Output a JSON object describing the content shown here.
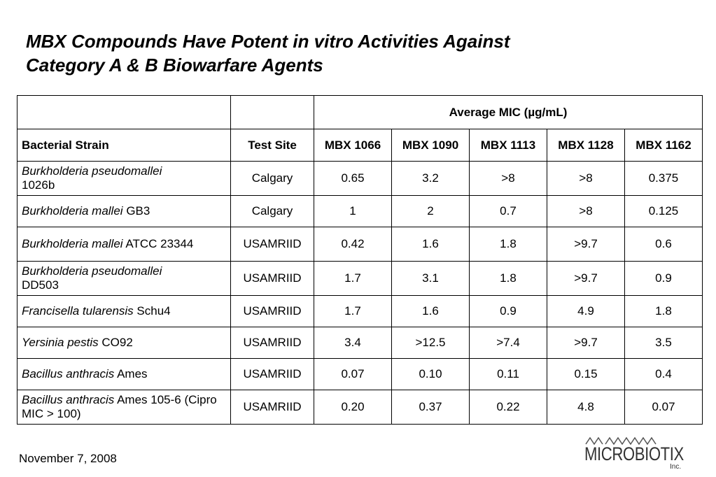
{
  "title": {
    "line1": "MBX Compounds Have Potent in vitro Activities Against",
    "line2": "Category A & B Biowarfare Agents"
  },
  "table": {
    "group_header": "Average MIC (µg/mL)",
    "headers": [
      "Bacterial Strain",
      "Test Site",
      "MBX 1066",
      "MBX 1090",
      "MBX 1113",
      "MBX 1128",
      "MBX 1162"
    ],
    "rows": [
      {
        "species": "Burkholderia pseudomallei",
        "strain": "1026b",
        "site": "Calgary",
        "values": [
          "0.65",
          "3.2",
          ">8",
          ">8",
          "0.375"
        ]
      },
      {
        "species": "Burkholderia mallei",
        "strain": "GB3",
        "site": "Calgary",
        "values": [
          "1",
          "2",
          "0.7",
          ">8",
          "0.125"
        ]
      },
      {
        "species": "Burkholderia mallei",
        "strain": "ATCC 23344",
        "site": "USAMRIID",
        "values": [
          "0.42",
          "1.6",
          "1.8",
          ">9.7",
          "0.6"
        ]
      },
      {
        "species": "Burkholderia pseudomallei",
        "strain": "DD503",
        "site": "USAMRIID",
        "values": [
          "1.7",
          "3.1",
          "1.8",
          ">9.7",
          "0.9"
        ]
      },
      {
        "species": "Francisella tularensis",
        "strain": "Schu4",
        "site": "USAMRIID",
        "values": [
          "1.7",
          "1.6",
          "0.9",
          "4.9",
          "1.8"
        ]
      },
      {
        "species": "Yersinia pestis",
        "strain": "CO92",
        "site": "USAMRIID",
        "values": [
          "3.4",
          ">12.5",
          ">7.4",
          ">9.7",
          "3.5"
        ]
      },
      {
        "species": "Bacillus anthracis",
        "strain": "Ames",
        "site": "USAMRIID",
        "values": [
          "0.07",
          "0.10",
          "0.11",
          "0.15",
          "0.4"
        ]
      },
      {
        "species": "Bacillus anthracis",
        "strain": "Ames 105-6 (Cipro MIC > 100)",
        "site": "USAMRIID",
        "values": [
          "0.20",
          "0.37",
          "0.22",
          "4.8",
          "0.07"
        ]
      }
    ]
  },
  "footer": {
    "date": "November 7, 2008",
    "logo_text": "MICROBIOTIX",
    "logo_suffix": "Inc."
  }
}
